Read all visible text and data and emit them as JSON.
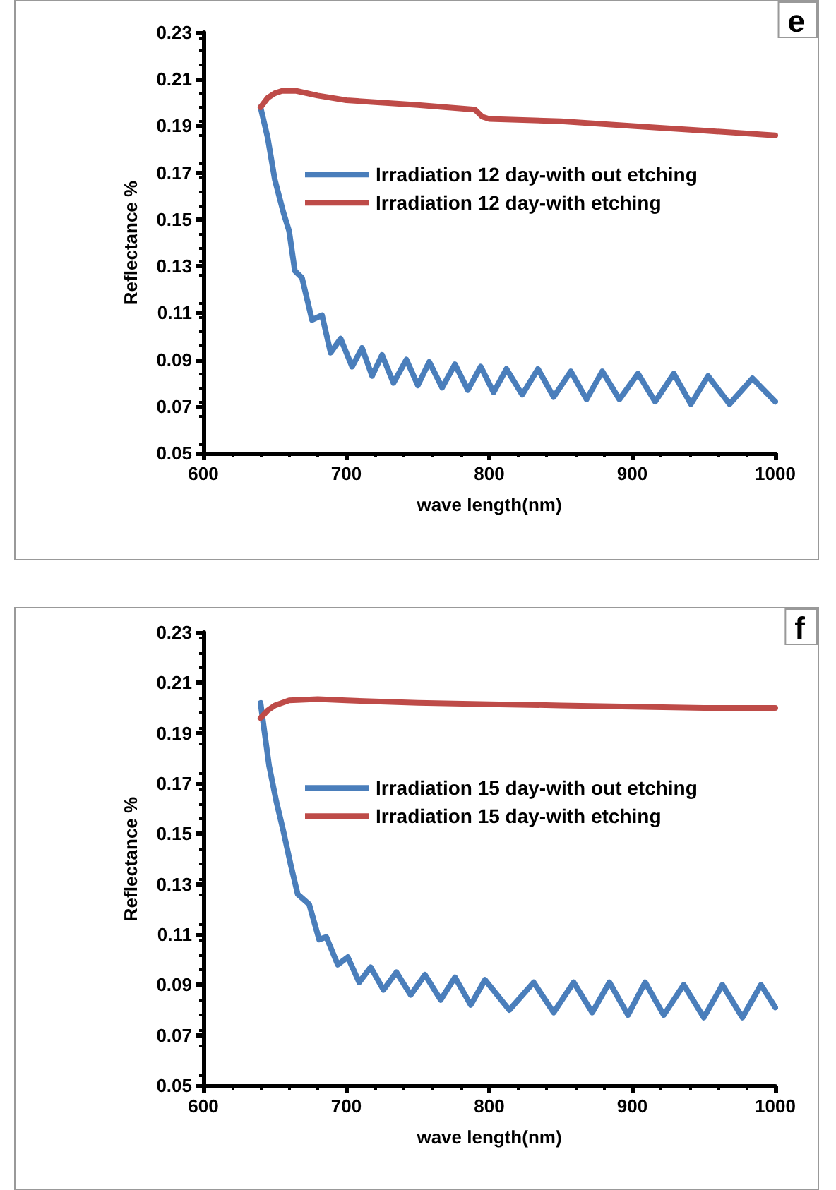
{
  "chart_data": [
    {
      "type": "line",
      "xlabel": "wave length(nm)",
      "ylabel": "Reflectance %",
      "annotations": [
        "e"
      ],
      "xlim": [
        600,
        1000
      ],
      "xticks": [
        600,
        700,
        800,
        900,
        1000
      ],
      "ylim": [
        0.05,
        0.23
      ],
      "yticks": [
        0.05,
        0.07,
        0.09,
        0.11,
        0.13,
        0.15,
        0.17,
        0.19,
        0.21,
        0.23
      ],
      "grid": false,
      "legend": "right",
      "marker": "none",
      "line_style": "solid",
      "series": [
        {
          "name": "Irradiation 12 day-with out etching",
          "color": "#4a7ebb",
          "x": [
            640,
            645,
            650,
            656,
            660,
            664,
            669,
            676,
            683,
            689,
            696,
            704,
            711,
            718,
            725,
            733,
            742,
            750,
            758,
            767,
            776,
            785,
            794,
            803,
            812,
            823,
            834,
            845,
            857,
            868,
            879,
            891,
            904,
            916,
            929,
            941,
            953,
            968,
            984,
            1000
          ],
          "values": [
            0.198,
            0.185,
            0.167,
            0.153,
            0.145,
            0.128,
            0.125,
            0.107,
            0.109,
            0.093,
            0.099,
            0.087,
            0.095,
            0.083,
            0.092,
            0.08,
            0.09,
            0.079,
            0.089,
            0.078,
            0.088,
            0.077,
            0.087,
            0.076,
            0.086,
            0.075,
            0.086,
            0.074,
            0.085,
            0.073,
            0.085,
            0.073,
            0.084,
            0.072,
            0.084,
            0.071,
            0.083,
            0.071,
            0.082,
            0.072
          ]
        },
        {
          "name": "Irradiation 12 day-with etching",
          "color": "#be4b48",
          "x": [
            640,
            645,
            650,
            655,
            665,
            680,
            700,
            750,
            790,
            795,
            800,
            850,
            900,
            950,
            1000
          ],
          "values": [
            0.198,
            0.202,
            0.204,
            0.205,
            0.205,
            0.203,
            0.201,
            0.199,
            0.197,
            0.194,
            0.193,
            0.192,
            0.19,
            0.188,
            0.186
          ]
        }
      ]
    },
    {
      "type": "line",
      "xlabel": "wave length(nm)",
      "ylabel": "Reflectance %",
      "annotations": [
        "f"
      ],
      "xlim": [
        600,
        1000
      ],
      "xticks": [
        600,
        700,
        800,
        900,
        1000
      ],
      "ylim": [
        0.05,
        0.23
      ],
      "yticks": [
        0.05,
        0.07,
        0.09,
        0.11,
        0.13,
        0.15,
        0.17,
        0.19,
        0.21,
        0.23
      ],
      "grid": false,
      "legend": "right",
      "marker": "none",
      "line_style": "solid",
      "series": [
        {
          "name": "Irradiation 15 day-with out etching",
          "color": "#4a7ebb",
          "x": [
            640,
            646,
            651,
            656,
            661,
            666,
            674,
            681,
            686,
            694,
            701,
            709,
            717,
            726,
            735,
            745,
            755,
            766,
            776,
            787,
            797,
            814,
            831,
            845,
            859,
            872,
            884,
            897,
            909,
            922,
            936,
            950,
            963,
            977,
            990,
            1000
          ],
          "values": [
            0.202,
            0.177,
            0.163,
            0.151,
            0.138,
            0.126,
            0.122,
            0.108,
            0.109,
            0.098,
            0.101,
            0.091,
            0.097,
            0.088,
            0.095,
            0.086,
            0.094,
            0.084,
            0.093,
            0.082,
            0.092,
            0.08,
            0.091,
            0.079,
            0.091,
            0.079,
            0.091,
            0.078,
            0.091,
            0.078,
            0.09,
            0.077,
            0.09,
            0.077,
            0.09,
            0.081
          ]
        },
        {
          "name": "Irradiation 15 day-with etching",
          "color": "#be4b48",
          "x": [
            640,
            645,
            650,
            660,
            680,
            700,
            750,
            800,
            850,
            900,
            950,
            1000
          ],
          "values": [
            0.196,
            0.199,
            0.201,
            0.203,
            0.2035,
            0.203,
            0.202,
            0.2015,
            0.201,
            0.2005,
            0.2,
            0.2
          ]
        }
      ]
    }
  ]
}
